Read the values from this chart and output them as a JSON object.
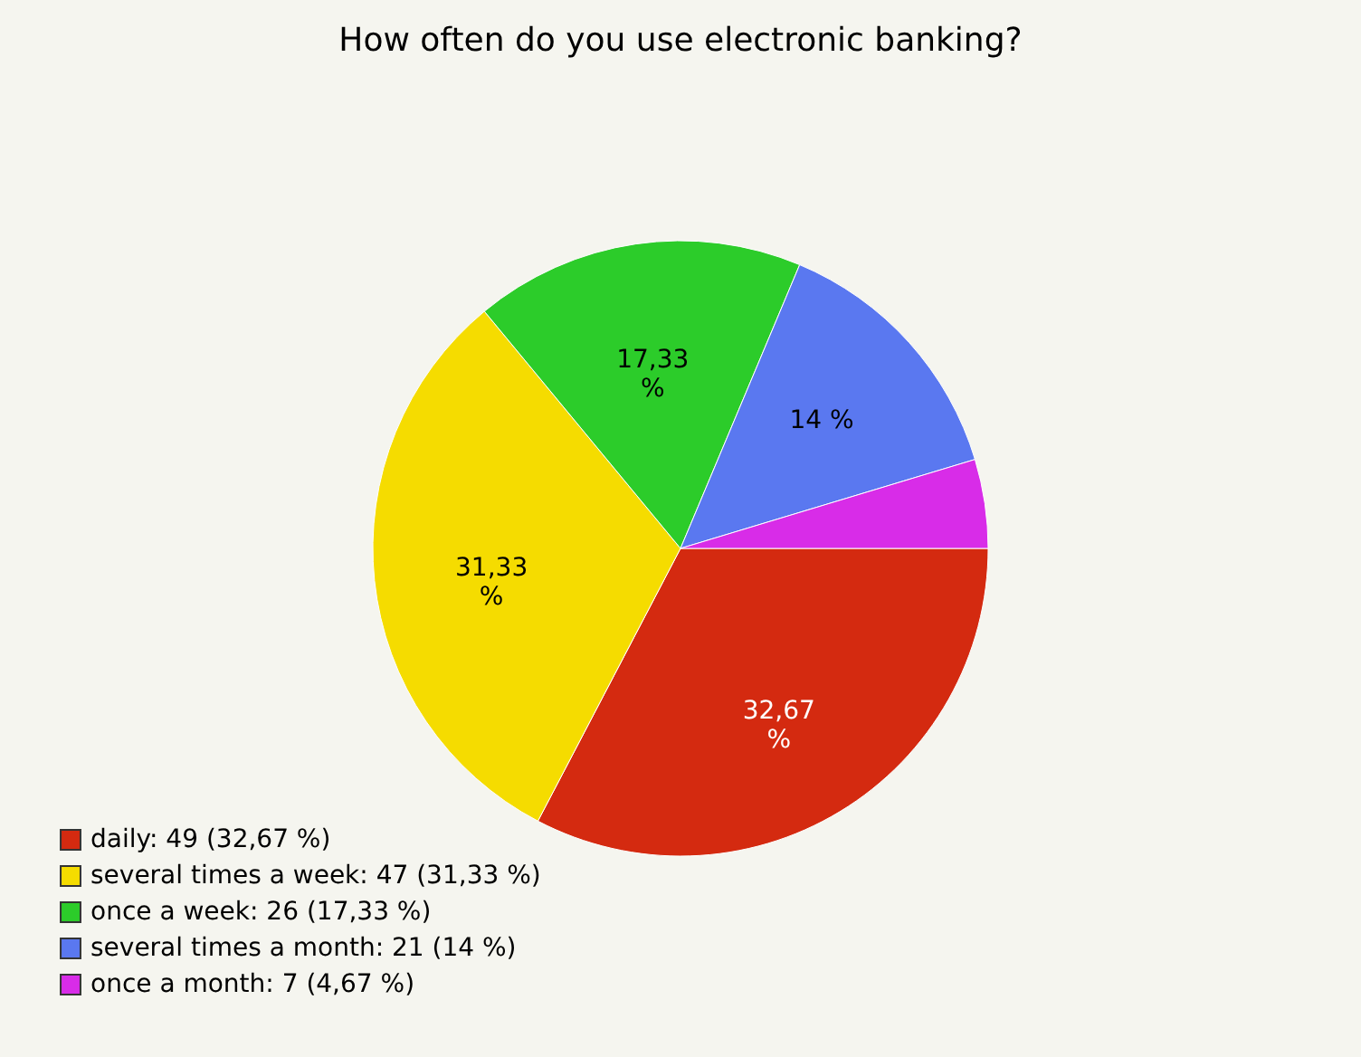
{
  "chart_data": {
    "type": "pie",
    "title": "How often do you use electronic banking?",
    "categories": [
      "daily: 49 (32,67 %)",
      "several times a week: 47 (31,33 %)",
      "once a week: 26 (17,33 %)",
      "several times a month: 21 (14 %)",
      "once a month: 7 (4,67 %)"
    ],
    "values": [
      32.67,
      31.33,
      17.33,
      14,
      4.67
    ],
    "colors": [
      "#d42a10",
      "#f5dc00",
      "#2ccc2a",
      "#5a78f0",
      "#d82ce8"
    ],
    "value_labels": [
      "32,67\n%",
      "31,33\n%",
      "17,33\n%",
      "14 %",
      null
    ],
    "legend": "bottom left"
  }
}
